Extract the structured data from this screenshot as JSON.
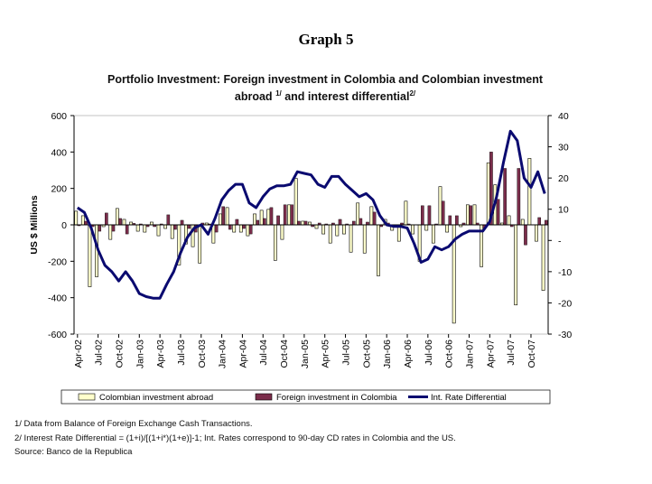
{
  "title": "Graph 5",
  "subtitle_line1": "Portfolio Investment: Foreign investment in Colombia and Colombian investment",
  "subtitle_line2_a": "abroad",
  "subtitle_sup1": "1/",
  "subtitle_line2_b": " and interest differential",
  "subtitle_sup2": "2/",
  "notes": [
    "1/ Data from Balance of Foreign Exchange Cash Transactions.",
    "2/ Interest Rate Differential = (1+i)/[(1+i*)(1+e)]-1; Int. Rates correspond to 90-day CD rates in Colombia and the US.",
    "Source:  Banco de la Republica"
  ],
  "colors": {
    "abroad": "#FFFFCC",
    "foreign": "#7B2D4B",
    "line": "#0A0A70"
  },
  "chart_data": {
    "type": "bar+line",
    "ylabel": "US $ Millions",
    "ylim": [
      -600,
      600
    ],
    "yticks": [
      600,
      400,
      200,
      0,
      -200,
      -400,
      -600
    ],
    "y2lim": [
      -30,
      40
    ],
    "y2ticks": [
      "40",
      "30",
      "20",
      "10",
      "-",
      "-10",
      "-20",
      "-30"
    ],
    "xtick_labels": [
      "Apr-02",
      "Jul-02",
      "Oct-02",
      "Jan-03",
      "Apr-03",
      "Jul-03",
      "Oct-03",
      "Jan-04",
      "Apr-04",
      "Jul-04",
      "Oct-04",
      "Jan-05",
      "Apr-05",
      "Jul-05",
      "Oct-05",
      "Jan-06",
      "Apr-06",
      "Jul-06",
      "Oct-06",
      "Jan-07",
      "Apr-07",
      "Jul-07",
      "Oct-07"
    ],
    "months_count": 69,
    "legend": [
      "Colombian investment abroad",
      "Foreign investment in Colombia",
      "Int. Rate Differential"
    ],
    "legend_position": "bottom",
    "series": [
      {
        "name": "Colombian investment abroad",
        "axis": "left",
        "type": "bar",
        "values": [
          75,
          50,
          -340,
          -285,
          -10,
          -80,
          90,
          30,
          15,
          -35,
          -40,
          15,
          -60,
          -20,
          -75,
          -220,
          -105,
          -120,
          -210,
          10,
          -100,
          60,
          95,
          -40,
          -40,
          -60,
          60,
          80,
          85,
          -195,
          -80,
          110,
          255,
          20,
          15,
          -20,
          -50,
          -100,
          -60,
          -50,
          -150,
          120,
          -155,
          100,
          -280,
          30,
          -30,
          -90,
          130,
          -50,
          -200,
          -30,
          -100,
          210,
          -40,
          -540,
          -10,
          110,
          110,
          -230,
          340,
          220,
          10,
          50,
          -440,
          30,
          365,
          -90,
          -360
        ]
      },
      {
        "name": "Foreign investment in Colombia",
        "axis": "left",
        "type": "bar",
        "values": [
          -5,
          20,
          -10,
          -35,
          65,
          -35,
          35,
          -50,
          8,
          5,
          -10,
          -10,
          5,
          55,
          -25,
          25,
          -20,
          -40,
          10,
          5,
          -40,
          100,
          -25,
          30,
          -20,
          -50,
          25,
          35,
          95,
          50,
          110,
          110,
          20,
          20,
          -10,
          10,
          5,
          10,
          30,
          5,
          20,
          35,
          15,
          70,
          -10,
          10,
          0,
          10,
          5,
          0,
          105,
          105,
          5,
          130,
          50,
          50,
          10,
          105,
          10,
          -20,
          400,
          140,
          310,
          -10,
          310,
          -110,
          0,
          40,
          25
        ]
      },
      {
        "name": "Int. Rate Differential",
        "axis": "right",
        "type": "line",
        "values": [
          10.5,
          9,
          4,
          -3,
          -8,
          -10,
          -13,
          -10,
          -13,
          -17,
          -18,
          -18.5,
          -18.5,
          -14,
          -10,
          -4,
          1,
          4,
          5,
          2,
          7,
          13,
          16,
          18,
          18,
          12,
          10.5,
          14,
          16.5,
          17.5,
          17.5,
          18,
          22,
          21.5,
          21,
          18,
          17,
          20.5,
          20.5,
          18,
          16,
          14,
          15,
          13,
          8,
          5,
          4.5,
          4.5,
          4,
          -1,
          -7,
          -6,
          -2,
          -3,
          -2,
          0.5,
          2,
          3,
          3,
          3,
          6,
          14,
          25,
          35,
          32,
          20,
          17,
          22,
          15
        ]
      }
    ]
  }
}
